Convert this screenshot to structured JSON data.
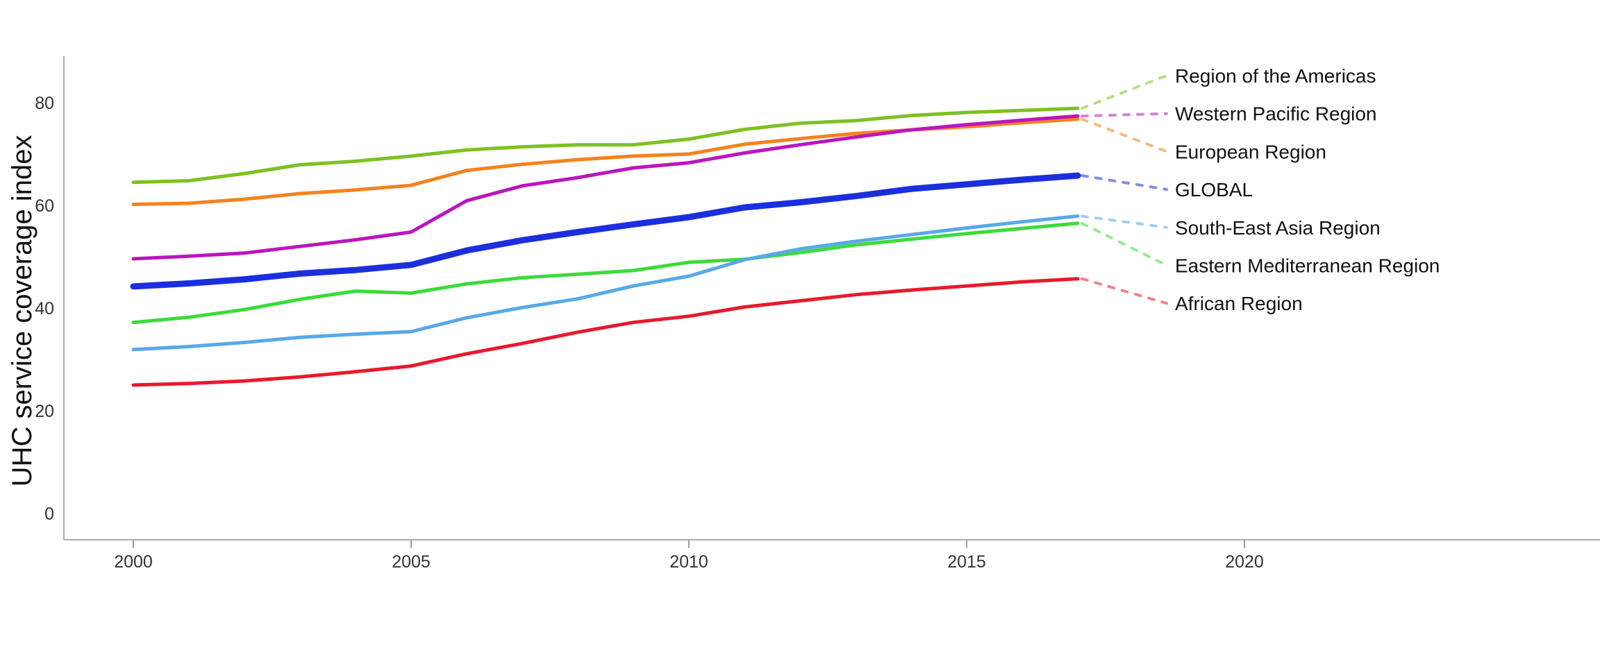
{
  "chart": {
    "y_axis_title": "UHC service coverage index",
    "x_tick_labels": [
      "2000",
      "2005",
      "2010",
      "2015",
      "2020"
    ],
    "y_tick_labels": [
      "0",
      "20",
      "40",
      "60",
      "80"
    ],
    "axis_color": "#adadad",
    "tick_color": "#9b9b9b",
    "text_color": "#333333"
  },
  "chart_data": {
    "type": "line",
    "title": "",
    "xlabel": "",
    "ylabel": "UHC service coverage index",
    "x": [
      2000,
      2001,
      2002,
      2003,
      2004,
      2005,
      2006,
      2007,
      2008,
      2009,
      2010,
      2011,
      2012,
      2013,
      2014,
      2015,
      2016,
      2017
    ],
    "x_axis_ticks": [
      2000,
      2005,
      2010,
      2015,
      2020
    ],
    "y_axis_ticks": [
      0,
      20,
      40,
      60,
      80
    ],
    "ylim": [
      -5,
      89
    ],
    "xlim": [
      1998.75,
      2026.4
    ],
    "grid": false,
    "legend_position": "right-direct-labels-with-dashed-leaders",
    "series": [
      {
        "name": "Region of the Americas",
        "color": "#7DC123",
        "line_width": 5,
        "values": [
          64.5,
          64.8,
          66.2,
          67.9,
          68.6,
          69.6,
          70.8,
          71.4,
          71.8,
          71.8,
          72.9,
          74.8,
          76.0,
          76.5,
          77.5,
          78.1,
          78.5,
          78.9
        ]
      },
      {
        "name": "Western Pacific Region",
        "color": "#BB16BC",
        "line_width": 5,
        "values": [
          49.6,
          50.1,
          50.7,
          52.0,
          53.3,
          54.8,
          60.9,
          63.8,
          65.4,
          67.3,
          68.3,
          70.2,
          71.8,
          73.3,
          74.7,
          75.7,
          76.6,
          77.4
        ]
      },
      {
        "name": "European Region",
        "color": "#F5821F",
        "line_width": 5,
        "values": [
          60.2,
          60.4,
          61.2,
          62.3,
          63.0,
          63.9,
          66.8,
          68.0,
          68.9,
          69.6,
          70.0,
          71.9,
          73.0,
          74.0,
          74.7,
          75.3,
          76.1,
          76.8
        ]
      },
      {
        "name": "GLOBAL",
        "color": "#1B2FDE",
        "line_width": 9,
        "values": [
          44.2,
          44.8,
          45.6,
          46.7,
          47.4,
          48.4,
          51.2,
          53.2,
          54.8,
          56.3,
          57.7,
          59.6,
          60.6,
          61.8,
          63.2,
          64.1,
          65.0,
          65.8
        ]
      },
      {
        "name": "South-East Asia Region",
        "color": "#57A9E8",
        "line_width": 5,
        "values": [
          31.9,
          32.5,
          33.3,
          34.3,
          34.9,
          35.4,
          38.1,
          40.1,
          41.8,
          44.3,
          46.2,
          49.4,
          51.5,
          53.0,
          54.3,
          55.6,
          56.8,
          57.9
        ]
      },
      {
        "name": "Eastern Mediterranean Region",
        "color": "#3BDB3B",
        "line_width": 5,
        "values": [
          37.2,
          38.2,
          39.7,
          41.7,
          43.3,
          42.9,
          44.7,
          45.9,
          46.6,
          47.3,
          48.9,
          49.5,
          50.8,
          52.3,
          53.4,
          54.5,
          55.5,
          56.5
        ]
      },
      {
        "name": "African Region",
        "color": "#E9192D",
        "line_width": 5,
        "values": [
          25.0,
          25.3,
          25.8,
          26.6,
          27.6,
          28.7,
          31.1,
          33.1,
          35.3,
          37.2,
          38.4,
          40.2,
          41.4,
          42.6,
          43.5,
          44.3,
          45.1,
          45.7
        ]
      }
    ]
  }
}
